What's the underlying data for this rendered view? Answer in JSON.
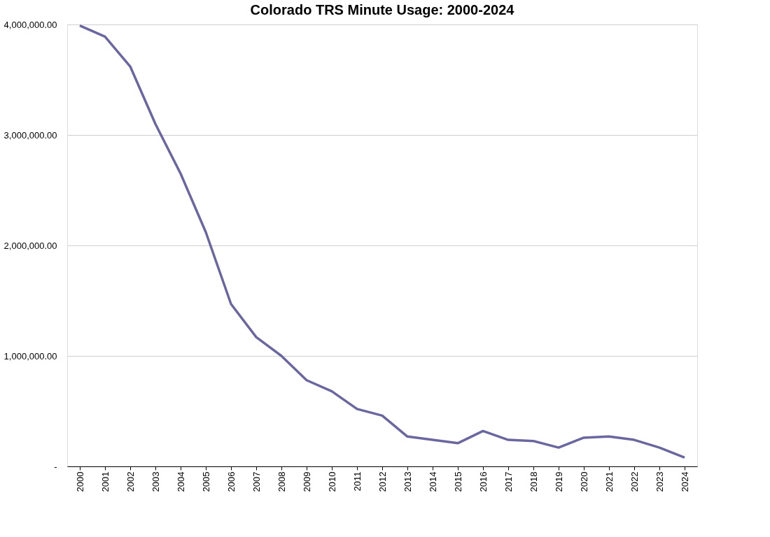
{
  "chart_data": {
    "type": "line",
    "title": "Colorado TRS Minute Usage: 2000-2024",
    "categories": [
      "2000",
      "2001",
      "2002",
      "2003",
      "2004",
      "2005",
      "2006",
      "2007",
      "2008",
      "2009",
      "2010",
      "2011",
      "2012",
      "2013",
      "2014",
      "2015",
      "2016",
      "2017",
      "2018",
      "2019",
      "2020",
      "2021",
      "2022",
      "2023",
      "2024"
    ],
    "series": [
      {
        "color": "#6a67a0",
        "values": [
          3990000,
          3890000,
          3620000,
          3100000,
          2650000,
          2120000,
          1470000,
          1170000,
          1000000,
          780000,
          680000,
          520000,
          460000,
          270000,
          240000,
          210000,
          320000,
          240000,
          230000,
          170000,
          260000,
          270000,
          240000,
          170000,
          80000
        ]
      }
    ],
    "ylim": [
      0,
      4000000
    ],
    "yticks": [
      {
        "value": 0,
        "label": "-"
      },
      {
        "value": 1000000,
        "label": "1,000,000.00"
      },
      {
        "value": 2000000,
        "label": "2,000,000.00"
      },
      {
        "value": 3000000,
        "label": "3,000,000.00"
      },
      {
        "value": 4000000,
        "label": "4,000,000.00"
      }
    ],
    "grid": "y",
    "marker": "none",
    "line_style": "solid"
  }
}
